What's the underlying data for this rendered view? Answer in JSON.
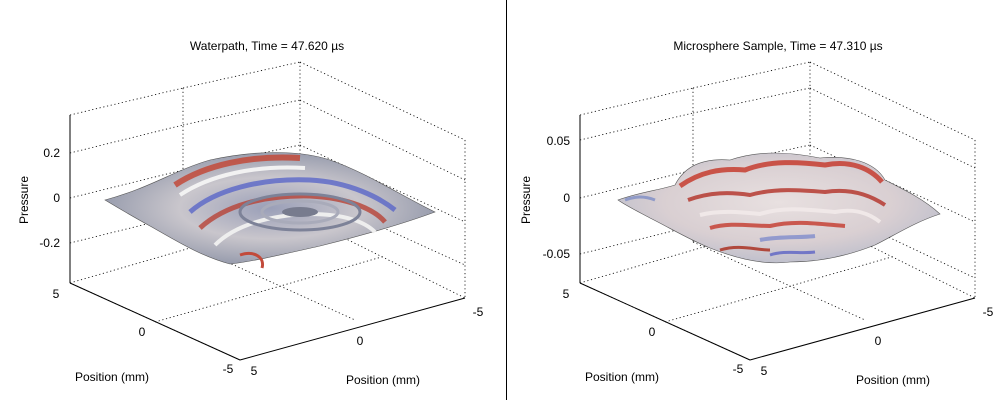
{
  "chart_data": [
    {
      "type": "surface",
      "title": "Waterpath,  Time = 47.620 µs",
      "zlabel": "Pressure",
      "xlabel": "Position (mm)",
      "ylabel": "Position (mm)",
      "zticks": [
        "0.2",
        "0",
        "-0.2"
      ],
      "xticks": [
        "5",
        "0",
        "-5"
      ],
      "yticks": [
        "5",
        "0",
        "-5"
      ],
      "grid": true,
      "colormap": "blue-white-red"
    },
    {
      "type": "surface",
      "title": "Microsphere Sample, Time = 47.310 µs",
      "zlabel": "Pressure",
      "xlabel": "Position (mm)",
      "ylabel": "Position (mm)",
      "zticks": [
        "0.05",
        "0",
        "-0.05"
      ],
      "xticks": [
        "5",
        "0",
        "-5"
      ],
      "yticks": [
        "5",
        "0",
        "-5"
      ],
      "grid": true,
      "colormap": "blue-white-red"
    }
  ]
}
